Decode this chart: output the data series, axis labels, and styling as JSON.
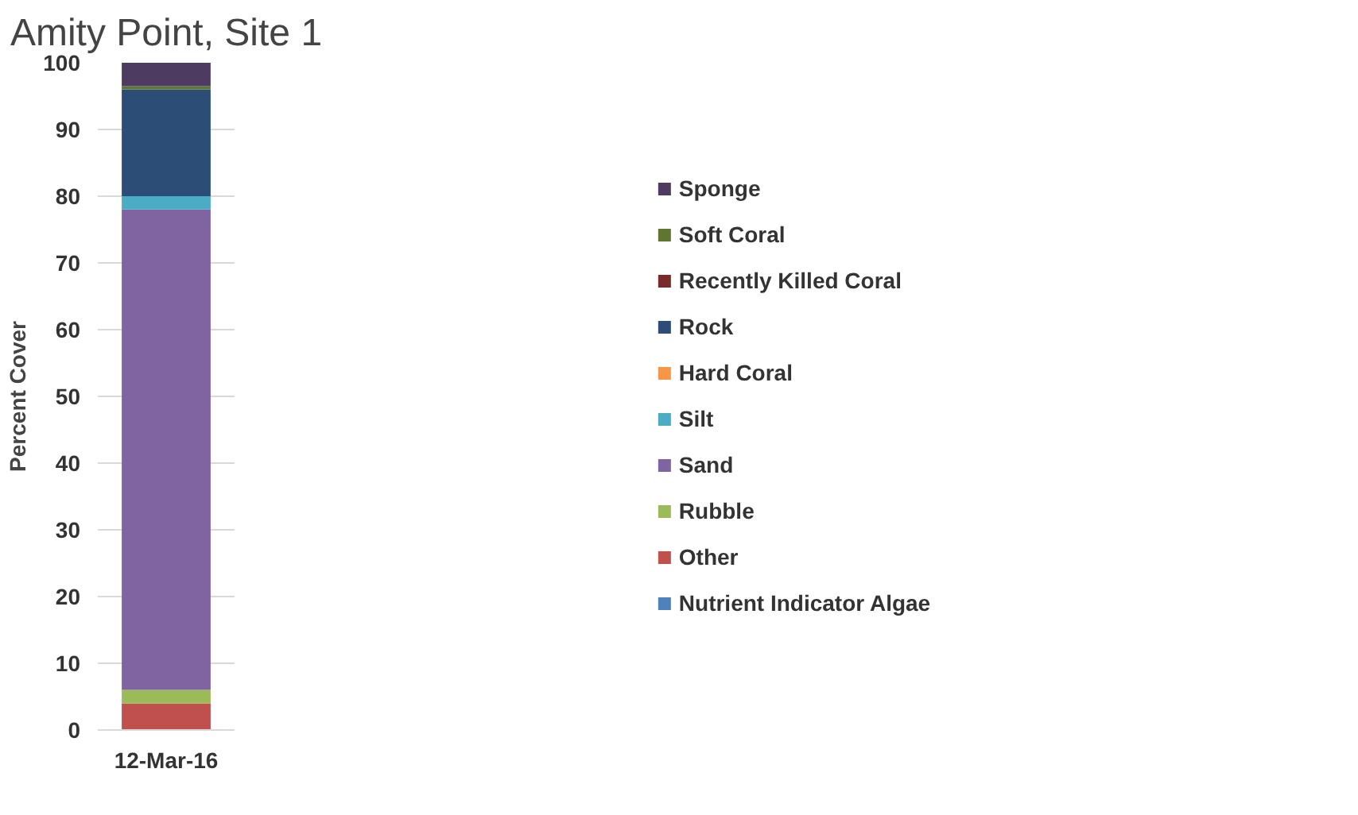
{
  "chart_data": {
    "type": "bar",
    "title": "Amity Point, Site 1",
    "ylabel": "Percent Cover",
    "categories": [
      "12-Mar-16"
    ],
    "stacked": true,
    "ylim": [
      0,
      100
    ],
    "yticks": [
      0,
      10,
      20,
      30,
      40,
      50,
      60,
      70,
      80,
      90,
      100
    ],
    "grid": "y",
    "legend": "right",
    "series": [
      {
        "name": "Nutrient Indicator Algae",
        "color": "#4f81bd",
        "values": [
          0
        ]
      },
      {
        "name": "Other",
        "color": "#c0504d",
        "values": [
          4
        ]
      },
      {
        "name": "Rubble",
        "color": "#9bbb59",
        "values": [
          2
        ]
      },
      {
        "name": "Sand",
        "color": "#8064a2",
        "values": [
          72
        ]
      },
      {
        "name": "Silt",
        "color": "#4bacc6",
        "values": [
          2
        ]
      },
      {
        "name": "Hard Coral",
        "color": "#f79646",
        "values": [
          0
        ]
      },
      {
        "name": "Rock",
        "color": "#2c4d75",
        "values": [
          16
        ]
      },
      {
        "name": "Recently Killed Coral",
        "color": "#772c2a",
        "values": [
          0
        ]
      },
      {
        "name": "Soft Coral",
        "color": "#5f7530",
        "values": [
          0.5
        ]
      },
      {
        "name": "Sponge",
        "color": "#4d3b62",
        "values": [
          3.5
        ]
      }
    ]
  }
}
